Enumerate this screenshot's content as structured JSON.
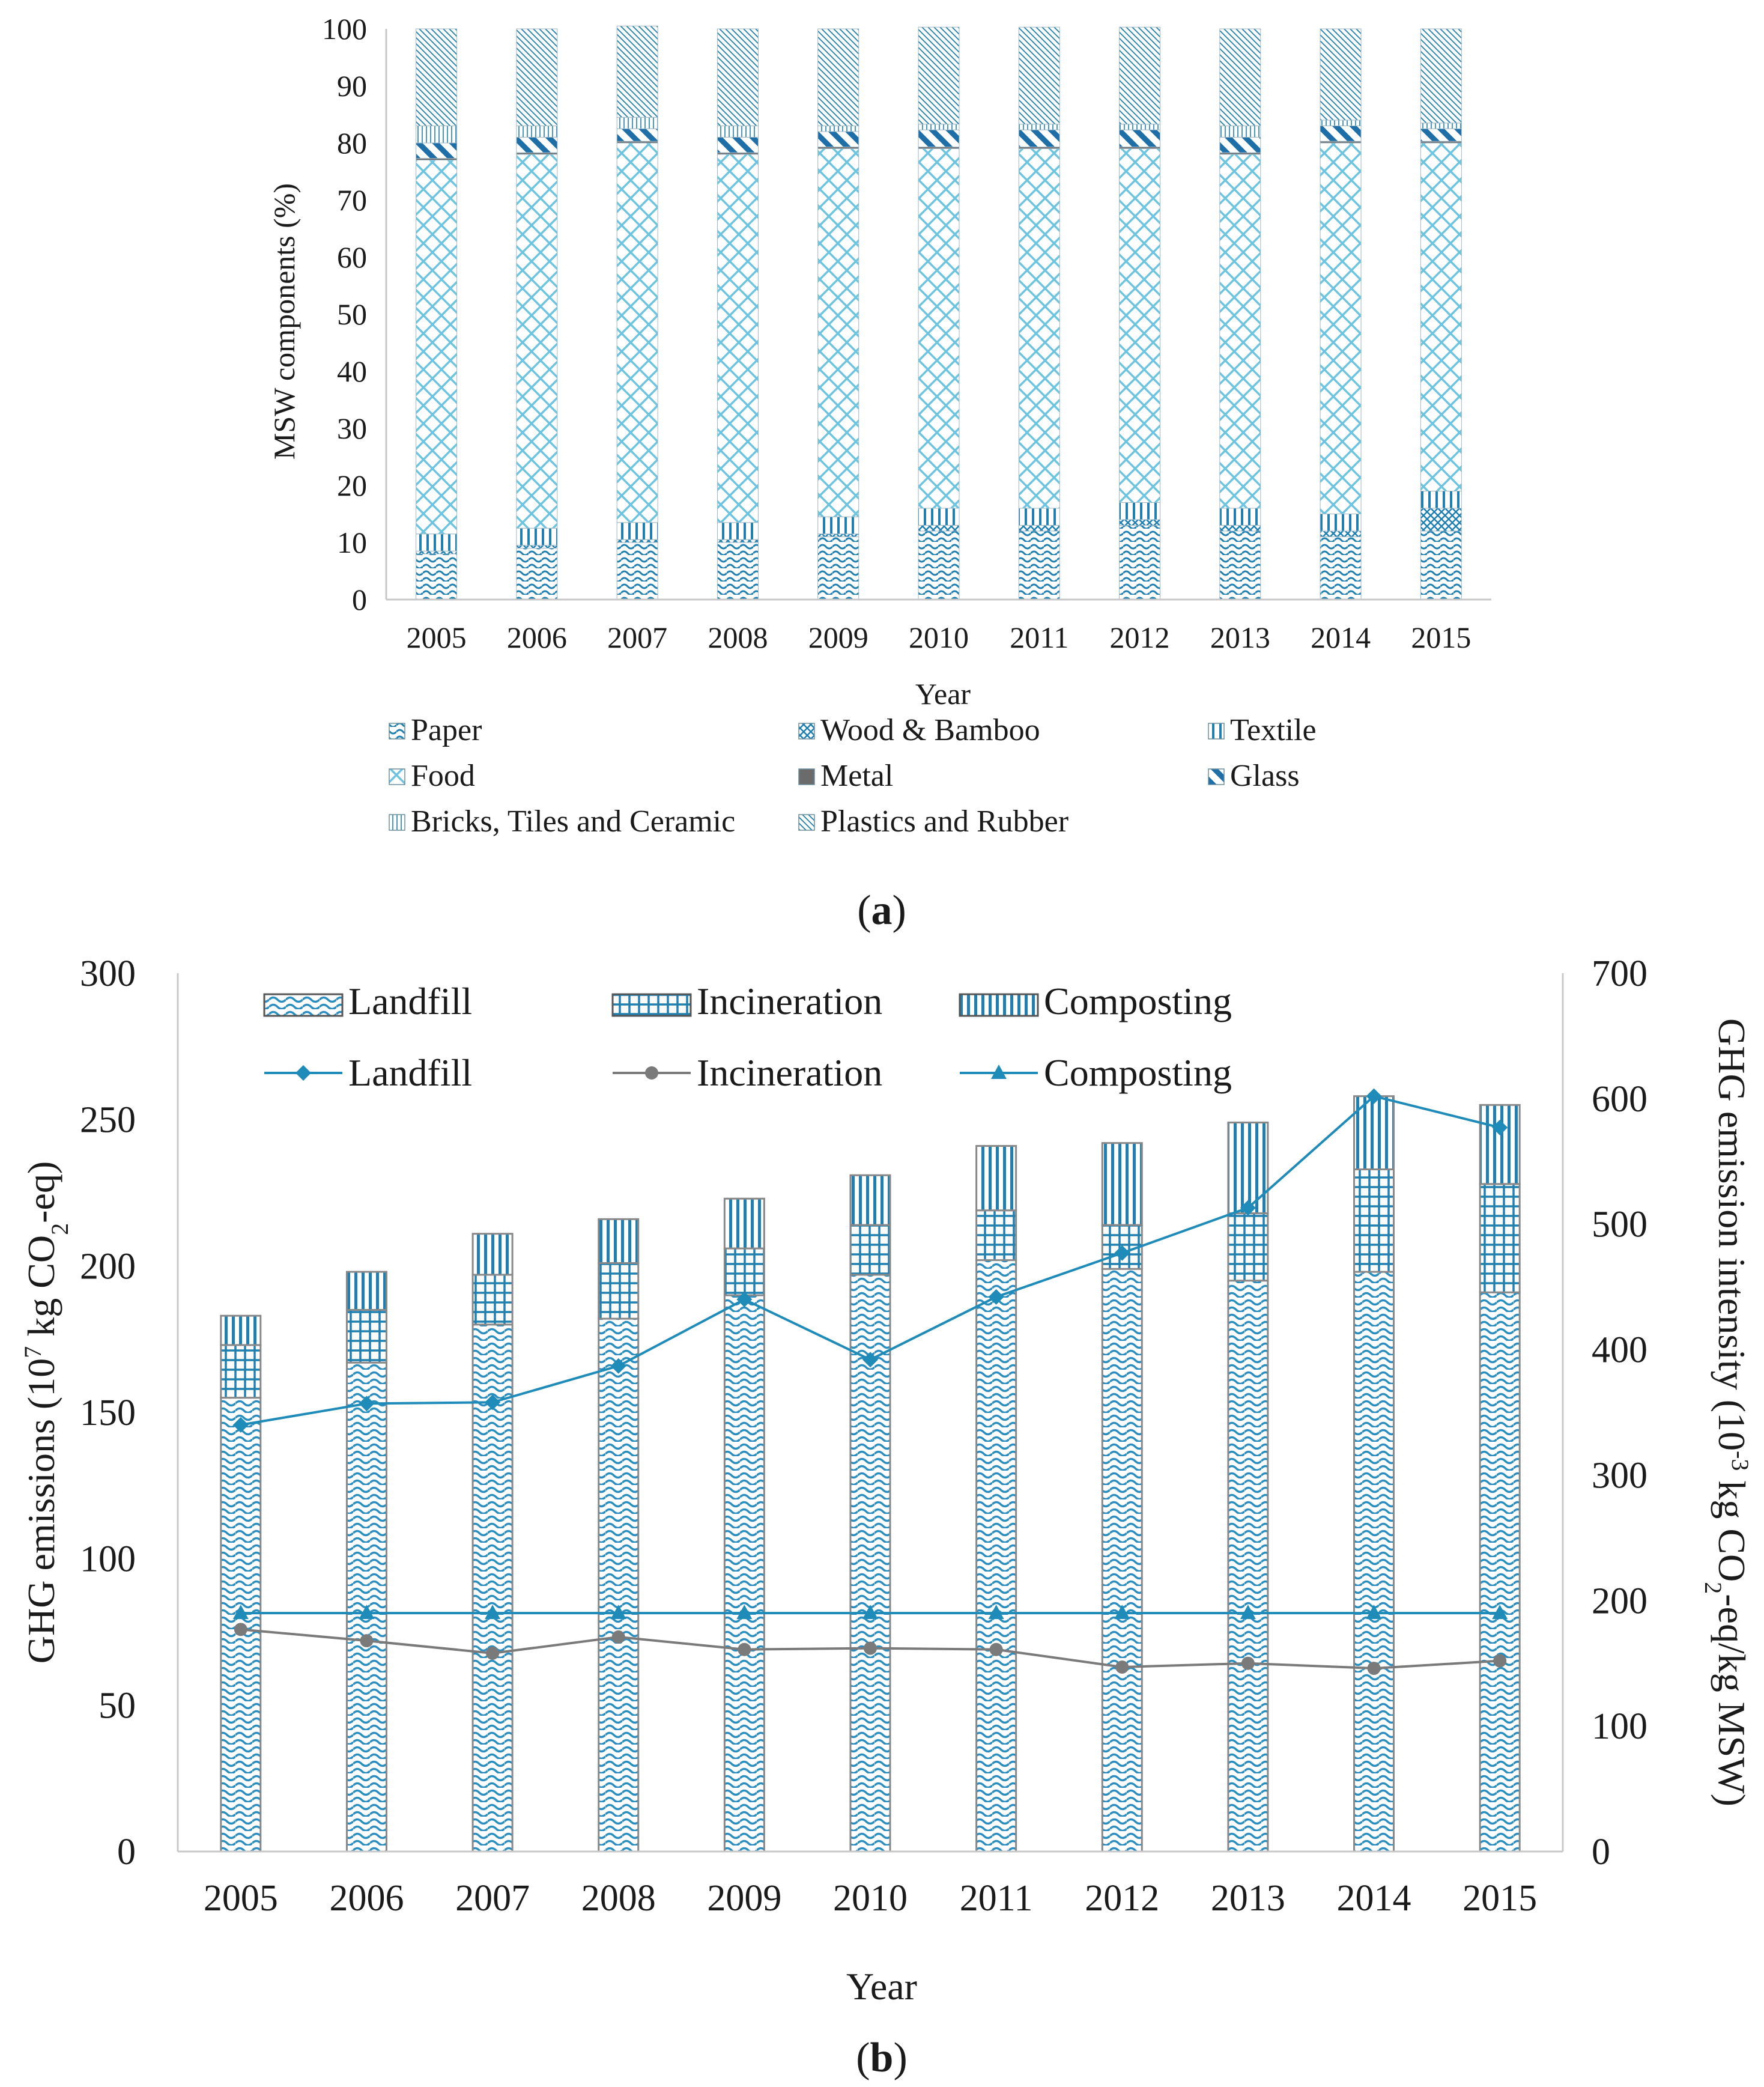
{
  "colors": {
    "accent": "#1e8bb8",
    "hatch_light": "#8fd4ea",
    "hatch_dark": "#1e7fb0",
    "grey_series": "#7a7a7a",
    "axis": "#c8c8c8",
    "bar_outline": "#888888"
  },
  "chart_data": [
    {
      "id": "a",
      "type": "bar",
      "stacked": true,
      "caption": "(a)",
      "caption_open": "(",
      "caption_letter": "a",
      "caption_close": ")",
      "xlabel": "Year",
      "ylabel": "MSW components (%)",
      "ylim": [
        0,
        100
      ],
      "yticks": [
        0,
        10,
        20,
        30,
        40,
        50,
        60,
        70,
        80,
        90,
        100
      ],
      "grid": false,
      "legend_position": "bottom",
      "categories": [
        "2005",
        "2006",
        "2007",
        "2008",
        "2009",
        "2010",
        "2011",
        "2012",
        "2013",
        "2014",
        "2015"
      ],
      "series": [
        {
          "name": "Paper",
          "pattern": "pat-paper",
          "values": [
            8,
            9,
            10,
            10,
            11,
            12,
            12,
            13,
            12,
            11,
            12
          ]
        },
        {
          "name": "Wood & Bamboo",
          "pattern": "pat-wood",
          "values": [
            0.5,
            0.5,
            0.5,
            0.5,
            0.5,
            1,
            1,
            1,
            1,
            1,
            4
          ]
        },
        {
          "name": "Textile",
          "pattern": "pat-textile",
          "values": [
            3,
            3,
            3,
            3,
            3,
            3,
            3,
            3,
            3,
            3,
            3
          ]
        },
        {
          "name": "Food",
          "pattern": "pat-food",
          "values": [
            65.5,
            65.5,
            66.5,
            64.5,
            64.5,
            63,
            63,
            62,
            62,
            65,
            61
          ]
        },
        {
          "name": "Metal",
          "pattern": "pat-metal",
          "values": [
            0.3,
            0.3,
            0.3,
            0.3,
            0.3,
            0.3,
            0.3,
            0.3,
            0.3,
            0.3,
            0.3
          ]
        },
        {
          "name": "Glass",
          "pattern": "pat-glass",
          "values": [
            2.7,
            2.7,
            2.2,
            2.7,
            2.7,
            3,
            3,
            3,
            2.7,
            2.7,
            2.2
          ]
        },
        {
          "name": "Bricks, Tiles and Ceramic",
          "pattern": "pat-bricks",
          "values": [
            3,
            2,
            2,
            2,
            1,
            1,
            1,
            1,
            2,
            1,
            1
          ]
        },
        {
          "name": "Plastics and Rubber",
          "pattern": "pat-plastics",
          "values": [
            17,
            17,
            16,
            17,
            17,
            17,
            17,
            17,
            17,
            16,
            16.5
          ]
        }
      ]
    },
    {
      "id": "b",
      "type": "bar+line",
      "caption": "(b)",
      "caption_open": "(",
      "caption_letter": "b",
      "caption_close": ")",
      "xlabel": "Year",
      "ylabel": "GHG emissions (10",
      "ylabel_sup": "7",
      "ylabel_mid": " kg CO",
      "ylabel_sub": "2",
      "ylabel_end": "-eq)",
      "ylim": [
        0,
        300
      ],
      "yticks": [
        0,
        50,
        100,
        150,
        200,
        250,
        300
      ],
      "y2label": "GHG emission intensity (10",
      "y2label_sup": "-3",
      "y2label_mid": " kg CO",
      "y2label_sub": "2",
      "y2label_end": "-eq/kg MSW)",
      "y2lim": [
        0,
        700
      ],
      "y2ticks": [
        0,
        100,
        200,
        300,
        400,
        500,
        600,
        700
      ],
      "grid": false,
      "legend_position": "top",
      "categories": [
        "2005",
        "2006",
        "2007",
        "2008",
        "2009",
        "2010",
        "2011",
        "2012",
        "2013",
        "2014",
        "2015"
      ],
      "bar_series": [
        {
          "name": "Landfill",
          "pattern": "pat-landfill",
          "values": [
            155,
            167,
            180,
            182,
            190,
            197,
            202,
            199,
            195,
            198,
            191
          ]
        },
        {
          "name": "Incineration",
          "pattern": "pat-incin",
          "values": [
            18,
            18,
            17,
            19,
            16,
            17,
            17,
            15,
            23,
            35,
            37
          ]
        },
        {
          "name": "Composting",
          "pattern": "pat-compost",
          "values": [
            10,
            13,
            14,
            15,
            17,
            17,
            22,
            28,
            31,
            25,
            27
          ]
        }
      ],
      "line_series": [
        {
          "name": "Landfill",
          "marker": "diamond",
          "color": "#1e8bb8",
          "values": [
            340,
            357,
            358,
            387,
            440,
            392,
            442,
            477,
            513,
            602,
            577
          ]
        },
        {
          "name": "Incineration",
          "marker": "circle",
          "color": "#7a7a7a",
          "values": [
            177,
            168,
            158,
            171,
            161,
            162,
            161,
            147,
            150,
            146,
            152
          ]
        },
        {
          "name": "Composting",
          "marker": "triangle",
          "color": "#1e8bb8",
          "values": [
            190,
            190,
            190,
            190,
            190,
            190,
            190,
            190,
            190,
            190,
            190
          ]
        }
      ]
    }
  ]
}
